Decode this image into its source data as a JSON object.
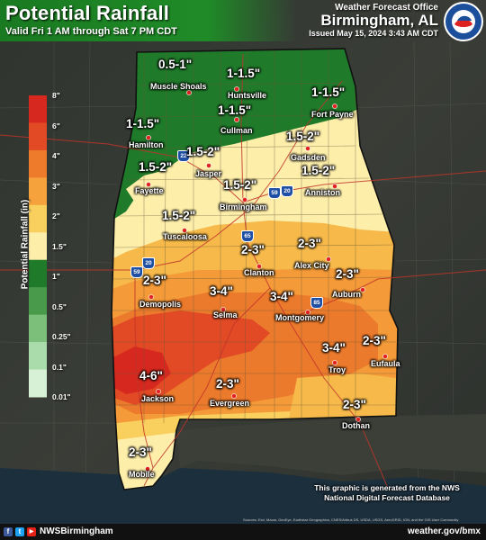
{
  "header": {
    "title": "Potential Rainfall",
    "subtitle": "Valid Fri 1 AM through Sat 7 PM CDT",
    "office_label": "Weather Forecast Office",
    "office_name": "Birmingham, AL",
    "issued": "Issued May 15, 2024 3:43 AM CDT",
    "logo_text": "NATIONAL WEATHER SERVICE"
  },
  "legend": {
    "title": "Potential Rainfall (in)",
    "ticks": [
      "8\"",
      "6\"",
      "4\"",
      "3\"",
      "2\"",
      "1.5\"",
      "1\"",
      "0.5\"",
      "0.25\"",
      "0.1\"",
      "0.01\""
    ],
    "colors": [
      "#d6281f",
      "#e24a25",
      "#ee7a2b",
      "#f6a23c",
      "#f9cf5d",
      "#fdeeaa",
      "#1f7a2a",
      "#4a9a4c",
      "#7bbf7a",
      "#aadcab",
      "#d6f1d6"
    ]
  },
  "amounts": [
    {
      "text": "0.5-1\""
    },
    {
      "text": "1-1.5\""
    },
    {
      "text": "1-1.5\""
    },
    {
      "text": "1-1.5\""
    },
    {
      "text": "1-1.5\""
    },
    {
      "text": "1.5-2\""
    },
    {
      "text": "1.5-2\""
    },
    {
      "text": "1.5-2\""
    },
    {
      "text": "1.5-2\""
    },
    {
      "text": "1.5-2\""
    },
    {
      "text": "1.5-2\""
    },
    {
      "text": "2-3\""
    },
    {
      "text": "2-3\""
    },
    {
      "text": "2-3\""
    },
    {
      "text": "2-3\""
    },
    {
      "text": "3-4\""
    },
    {
      "text": "3-4\""
    },
    {
      "text": "3-4\""
    },
    {
      "text": "2-3\""
    },
    {
      "text": "4-6\""
    },
    {
      "text": "2-3\""
    },
    {
      "text": "2-3\""
    },
    {
      "text": "2-3\""
    }
  ],
  "cities": [
    {
      "name": "Muscle Shoals"
    },
    {
      "name": "Huntsville"
    },
    {
      "name": "Cullman"
    },
    {
      "name": "Fort Payne"
    },
    {
      "name": "Hamilton"
    },
    {
      "name": "Jasper"
    },
    {
      "name": "Gadsden"
    },
    {
      "name": "Fayette"
    },
    {
      "name": "Birmingham"
    },
    {
      "name": "Anniston"
    },
    {
      "name": "Tuscaloosa"
    },
    {
      "name": "Clanton"
    },
    {
      "name": "Alex City"
    },
    {
      "name": "Auburn"
    },
    {
      "name": "Demopolis"
    },
    {
      "name": "Selma"
    },
    {
      "name": "Montgomery"
    },
    {
      "name": "Troy"
    },
    {
      "name": "Eufaula"
    },
    {
      "name": "Jackson"
    },
    {
      "name": "Evergreen"
    },
    {
      "name": "Dothan"
    },
    {
      "name": "Mobile"
    }
  ],
  "highways": [
    {
      "num": "22"
    },
    {
      "num": "59"
    },
    {
      "num": "20"
    },
    {
      "num": "65"
    },
    {
      "num": "20"
    },
    {
      "num": "59"
    },
    {
      "num": "85"
    }
  ],
  "note": {
    "line1": "This graphic is generated from the NWS",
    "line2": "National Digital Forecast Database"
  },
  "credits": "Sources: Esri, Maxar, GeoEye, Earthstar Geographics, CNES/Airbus DS, USDA, USGS, AeroGRID, IGN, and the GIS User Community",
  "footer": {
    "handle": "NWSBirmingham",
    "site": "weather.gov/bmx",
    "social": [
      "f",
      "t",
      "▶"
    ]
  }
}
